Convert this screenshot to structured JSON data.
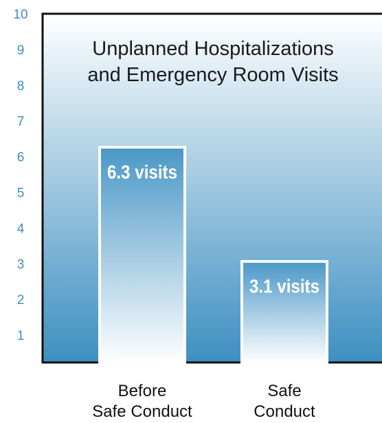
{
  "chart_data": {
    "type": "bar",
    "title": "Unplanned Hospitalizations\nand Emergency Room Visits",
    "categories": [
      "Before\nSafe Conduct",
      "Safe\nConduct"
    ],
    "values": [
      6.3,
      3.1
    ],
    "value_labels": [
      "6.3 visits",
      "3.1 visits"
    ],
    "ylim": [
      0,
      10
    ],
    "yticks": [
      1,
      2,
      3,
      4,
      5,
      6,
      7,
      8,
      9,
      10
    ],
    "color": "#4a97c7"
  }
}
